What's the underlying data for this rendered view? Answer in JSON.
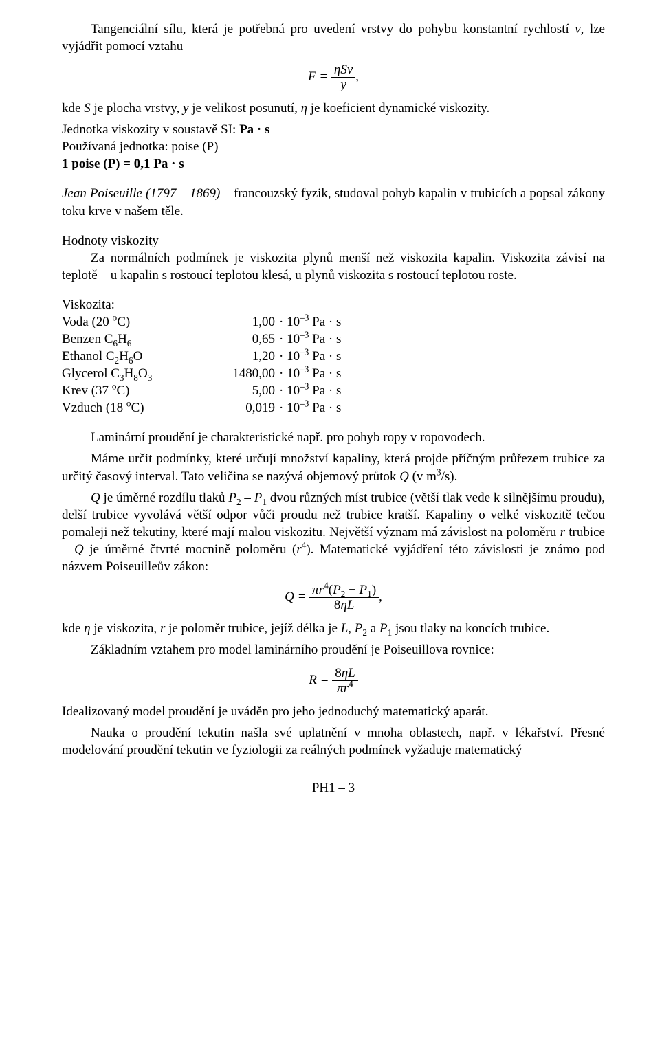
{
  "p1_a": "Tangenciální sílu, která je potřebná pro uvedení vrstvy do pohybu konstantní rychlostí ",
  "p1_v": "v",
  "p1_b": ", lze vyjádřit pomocí vztahu",
  "eq1_lhs": "F = ",
  "eq1_num_eta": "η",
  "eq1_num_S": "S",
  "eq1_num_v": "v",
  "eq1_den": "y",
  "comma": ",",
  "p2_a": "kde ",
  "p2_S": "S",
  "p2_b": " je plocha vrstvy, ",
  "p2_y": "y",
  "p2_c": " je velikost posunutí, ",
  "p2_eta": "η",
  "p2_d": " je koeficient dynamické viskozity.",
  "p3_a": "Jednotka viskozity v soustavě SI: ",
  "p3_unit": "Pa · s",
  "p4": "Používaná jednotka: poise (P)",
  "p5": "1 poise (P) = 0,1 Pa · s",
  "p6_name": "Jean Poiseuille (1797 – 1869)",
  "p6_rest": " – francouzský fyzik, studoval pohyb kapalin v trubicích a popsal zákony toku krve v našem těle.",
  "hv_title": "Hodnoty viskozity",
  "hv_text": "Za normálních podmínek je viskozita plynů menší než viskozita kapalin. Viskozita závisí na teplotě – u kapalin s rostoucí teplotou klesá, u plynů viskozita s rostoucí teplotou roste.",
  "visc_header": "Viskozita:",
  "visc": [
    {
      "label_html": "Voda (20 <span class='sup'>o</span>C)",
      "val": "1,00"
    },
    {
      "label_html": "Benzen C<span class='sub'>6</span>H<span class='sub'>6</span>",
      "val": "0,65"
    },
    {
      "label_html": "Ethanol C<span class='sub'>2</span>H<span class='sub'>6</span>O",
      "val": "1,20"
    },
    {
      "label_html": "Glycerol C<span class='sub'>3</span>H<span class='sub'>8</span>O<span class='sub'>3</span>",
      "val": "1480,00"
    },
    {
      "label_html": "Krev (37 <span class='sup'>o</span>C)",
      "val": "5,00"
    },
    {
      "label_html": "Vzduch (18 <span class='sup'>o</span>C)",
      "val": "0,019"
    }
  ],
  "visc_common_unit_html": " · 10<span class='sup'>–3</span> Pa · s",
  "p7": "Laminární  proudění je charakteristické např. pro pohyb ropy v ropovodech.",
  "p8_a": "Máme určit podmínky, které určují množství kapaliny, která projde příčným průřezem trubice za určitý časový interval. Tato veličina se nazývá objemový průtok ",
  "p8_Q": "Q",
  "p8_b": " (v m",
  "p8_sup3": "3",
  "p8_c": "/s).",
  "p9_Q": "Q",
  "p9_a": " je úměrné rozdílu tlaků ",
  "p9_P2": "P",
  "p9_P2sub": "2",
  "p9_minus": " – ",
  "p9_P1": "P",
  "p9_P1sub": "1",
  "p9_b": " dvou různých míst trubice (větší tlak vede k silnějšímu proudu), delší trubice vyvolává větší odpor vůči proudu než trubice kratší. Kapaliny o velké viskozitě tečou pomaleji než tekutiny, které mají malou viskozitu. Největší význam má závislost na poloměru ",
  "p9_r": "r",
  "p9_c": " trubice – ",
  "p9_Q2": "Q",
  "p9_d": " je úměrné čtvrté mocnině poloměru (",
  "p9_r2": "r",
  "p9_sup4": "4",
  "p9_e": "). Matematické vyjádření této závislosti je známo pod názvem Poiseuilleův zákon:",
  "eq2_lhs": "Q = ",
  "eq2_num_pi": "π",
  "eq2_num_r": "r",
  "eq2_num_r_sup": "4",
  "eq2_num_lp": "(",
  "eq2_num_P2": "P",
  "eq2_num_P2sub": "2",
  "eq2_num_minus": " − ",
  "eq2_num_P1": "P",
  "eq2_num_P1sub": "1",
  "eq2_num_rp": ")",
  "eq2_den_8": "8",
  "eq2_den_eta": "η",
  "eq2_den_L": "L",
  "p10_a": "kde ",
  "p10_eta": "η",
  "p10_b": " je viskozita, ",
  "p10_r": "r",
  "p10_c": " je poloměr trubice, jejíž délka je ",
  "p10_L": "L",
  "p10_d": ", ",
  "p10_P2": "P",
  "p10_P2sub": "2",
  "p10_e": " a ",
  "p10_P1": "P",
  "p10_P1sub": "1",
  "p10_f": " jsou tlaky na koncích trubice.",
  "p11": "Základním vztahem pro model laminárního proudění je Poiseuillova rovnice:",
  "eq3_lhs": "R = ",
  "eq3_num_8": "8",
  "eq3_num_eta": "η",
  "eq3_num_L": "L",
  "eq3_den_pi": "π",
  "eq3_den_r": "r",
  "eq3_den_r_sup": "4",
  "p12": "Idealizovaný model proudění je uváděn pro jeho jednoduchý matematický aparát.",
  "p13": "Nauka o proudění tekutin našla své uplatnění v mnoha oblastech, např. v lékařství. Přesné modelování proudění tekutin ve fyziologii  za reálných podmínek vyžaduje matematický",
  "footer": "PH1 – 3"
}
